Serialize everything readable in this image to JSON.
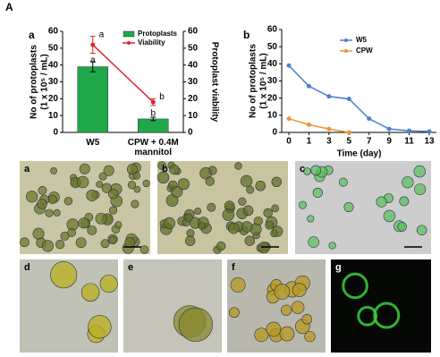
{
  "figure_label": "A",
  "chart_data": [
    {
      "type": "bar",
      "panel": "a",
      "categories": [
        "W5",
        "CPW + 0.4M mannitol"
      ],
      "y_label": [
        "No of protoplasts",
        "(1 x 10⁵ / mL)"
      ],
      "y2_label": "Protoplast viability",
      "ylim": [
        0,
        60
      ],
      "yticks": [
        0,
        10,
        20,
        30,
        40,
        50,
        60
      ],
      "y2lim": [
        0,
        60
      ],
      "y2ticks": [
        0,
        10,
        20,
        30,
        40,
        50,
        60
      ],
      "series": [
        {
          "name": "Protoplasts",
          "type": "bar",
          "color": "#1fa84a",
          "values": [
            39,
            8
          ],
          "errors": [
            3,
            1
          ],
          "letters": [
            "a",
            "b"
          ]
        },
        {
          "name": "Viability",
          "type": "line",
          "axis": "y2",
          "color": "#e0262b",
          "values": [
            52,
            18
          ],
          "errors": [
            5,
            2
          ],
          "letters": [
            "a",
            "b"
          ]
        }
      ]
    },
    {
      "type": "line",
      "panel": "b",
      "categories": [
        "0",
        "1",
        "3",
        "5",
        "7",
        "9",
        "11",
        "13"
      ],
      "x_label": "Time (day)",
      "y_label": [
        "No of protoplasts",
        "(1 x 10⁵ / mL)"
      ],
      "ylim": [
        0,
        60
      ],
      "yticks": [
        0,
        10,
        20,
        30,
        40,
        50,
        60
      ],
      "series": [
        {
          "name": "W5",
          "color": "#4a7fd0",
          "values": [
            39,
            27,
            21,
            19.5,
            8,
            2,
            1,
            0.5
          ]
        },
        {
          "name": "CPW",
          "color": "#f0913a",
          "values": [
            8,
            4.5,
            2,
            0,
            null,
            null,
            null,
            null
          ]
        }
      ]
    }
  ],
  "micrographs": {
    "labels": [
      "a",
      "b",
      "c",
      "d",
      "e",
      "f",
      "g"
    ]
  }
}
